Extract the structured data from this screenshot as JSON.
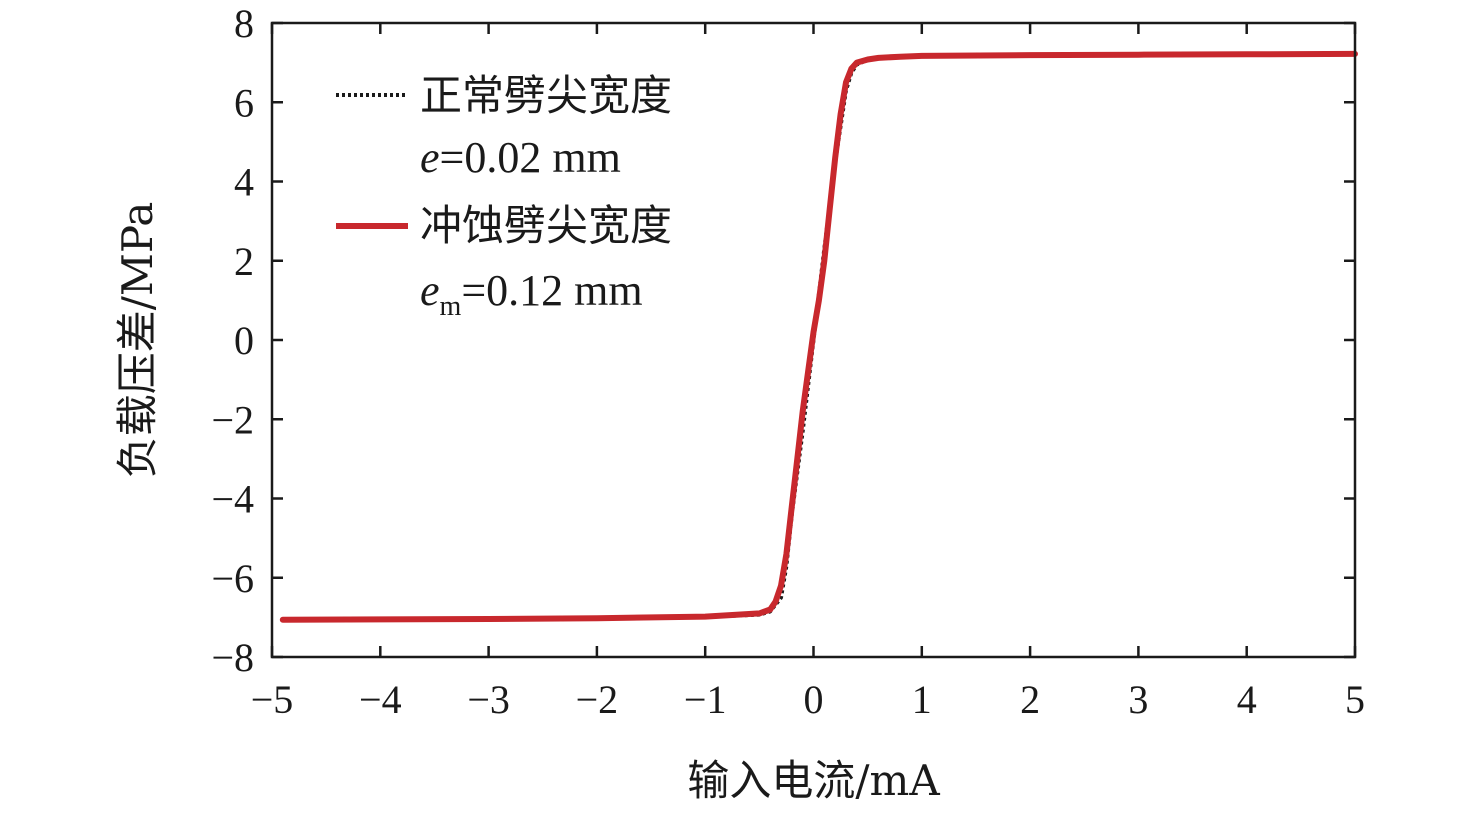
{
  "chart_data": {
    "type": "line",
    "xlabel": "输入电流/mA",
    "ylabel": "负载压差/MPa",
    "xlim": [
      -5,
      5
    ],
    "ylim": [
      -8,
      8
    ],
    "xticks": [
      -5,
      -4,
      -3,
      -2,
      -1,
      0,
      1,
      2,
      3,
      4,
      5
    ],
    "yticks": [
      -8,
      -6,
      -4,
      -2,
      0,
      2,
      4,
      6,
      8
    ],
    "xtick_labels": [
      "−5",
      "−4",
      "−3",
      "−2",
      "−1",
      "0",
      "1",
      "2",
      "3",
      "4",
      "5"
    ],
    "ytick_labels": [
      "−8",
      "−6",
      "−4",
      "−2",
      "0",
      "2",
      "4",
      "6",
      "8"
    ],
    "grid": false,
    "legend_position": "top-left",
    "series": [
      {
        "name": "正常劈尖宽度",
        "param": {
          "symbol": "e",
          "subscript": "",
          "value_text": "=0.02 mm"
        },
        "style": "dotted",
        "color": "#1a1a1a",
        "x": [
          -4.9,
          -4.0,
          -3.0,
          -2.0,
          -1.0,
          -0.5,
          -0.4,
          -0.3,
          -0.25,
          -0.2,
          -0.1,
          0.0,
          0.1,
          0.2,
          0.3,
          0.35,
          0.4,
          0.5,
          0.6,
          0.8,
          1.0,
          2.0,
          3.0,
          4.0,
          5.0
        ],
        "y": [
          -7.05,
          -7.04,
          -7.03,
          -7.02,
          -6.99,
          -6.93,
          -6.85,
          -6.5,
          -5.7,
          -4.4,
          -2.3,
          0.0,
          2.3,
          4.5,
          6.3,
          6.75,
          6.95,
          7.08,
          7.12,
          7.15,
          7.17,
          7.19,
          7.2,
          7.21,
          7.22
        ]
      },
      {
        "name": "冲蚀劈尖宽度",
        "param": {
          "symbol": "e",
          "subscript": "m",
          "value_text": "=0.12 mm"
        },
        "style": "solid",
        "color": "#c8282d",
        "x": [
          -4.9,
          -4.0,
          -3.0,
          -2.0,
          -1.0,
          -0.5,
          -0.4,
          -0.35,
          -0.3,
          -0.25,
          -0.2,
          -0.15,
          -0.1,
          -0.05,
          0.0,
          0.05,
          0.1,
          0.15,
          0.2,
          0.25,
          0.3,
          0.35,
          0.4,
          0.5,
          0.6,
          0.8,
          1.0,
          2.0,
          3.0,
          4.0,
          5.0
        ],
        "y": [
          -7.06,
          -7.05,
          -7.04,
          -7.02,
          -6.98,
          -6.9,
          -6.8,
          -6.6,
          -6.2,
          -5.4,
          -4.2,
          -3.0,
          -1.8,
          -0.8,
          0.2,
          1.0,
          2.0,
          3.3,
          4.6,
          5.7,
          6.5,
          6.85,
          7.0,
          7.08,
          7.12,
          7.15,
          7.17,
          7.19,
          7.2,
          7.21,
          7.22
        ]
      }
    ]
  }
}
